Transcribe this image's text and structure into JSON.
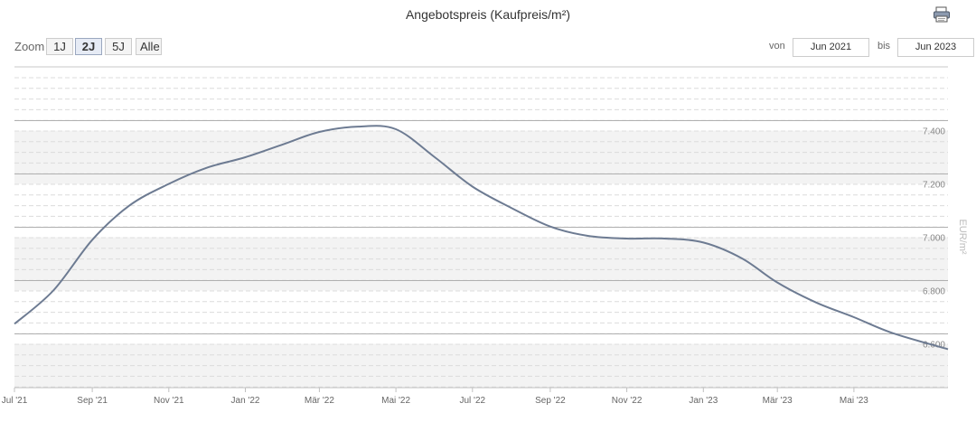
{
  "header": {
    "title": "Angebotspreis (Kaufpreis/m²)",
    "print_icon": "printer-icon"
  },
  "toolbar": {
    "zoom_label": "Zoom",
    "zoom_buttons": [
      "1J",
      "2J",
      "5J",
      "Alle"
    ],
    "active_zoom": "2J",
    "from_label": "von",
    "from_value": "Jun 2021",
    "to_label": "bis",
    "to_value": "Jun 2023"
  },
  "chart_data": {
    "type": "line",
    "ylabel": "EUR/m²",
    "ylim": [
      6500,
      7500
    ],
    "y_ticks": [
      6600,
      6800,
      7000,
      7200,
      7400
    ],
    "y_tick_labels": [
      "6.600",
      "6.800",
      "7.000",
      "7.200",
      "7.400"
    ],
    "x_range": [
      "2021-07-01",
      "2023-07-15"
    ],
    "x_ticks": [
      "2021-07-01",
      "2021-09-01",
      "2021-11-01",
      "2022-01-01",
      "2022-03-01",
      "2022-05-01",
      "2022-07-01",
      "2022-09-01",
      "2022-11-01",
      "2023-01-01",
      "2023-03-01",
      "2023-05-01"
    ],
    "x_tick_labels": [
      "Jul '21",
      "Sep '21",
      "Nov '21",
      "Jan '22",
      "Mär '22",
      "Mai '22",
      "Jul '22",
      "Sep '22",
      "Nov '22",
      "Jan '23",
      "Mär '23",
      "Mai '23"
    ],
    "grid": true,
    "series": [
      {
        "color": "#6d7b92",
        "points": [
          [
            "2021-07-01",
            6675
          ],
          [
            "2021-08-01",
            6800
          ],
          [
            "2021-09-01",
            6990
          ],
          [
            "2021-10-01",
            7120
          ],
          [
            "2021-11-01",
            7200
          ],
          [
            "2021-12-01",
            7260
          ],
          [
            "2022-01-01",
            7300
          ],
          [
            "2022-02-01",
            7350
          ],
          [
            "2022-03-01",
            7395
          ],
          [
            "2022-04-01",
            7415
          ],
          [
            "2022-05-01",
            7405
          ],
          [
            "2022-06-01",
            7300
          ],
          [
            "2022-07-01",
            7190
          ],
          [
            "2022-08-01",
            7110
          ],
          [
            "2022-09-01",
            7040
          ],
          [
            "2022-10-01",
            7005
          ],
          [
            "2022-11-01",
            6995
          ],
          [
            "2022-12-01",
            6995
          ],
          [
            "2023-01-01",
            6980
          ],
          [
            "2023-02-01",
            6920
          ],
          [
            "2023-03-01",
            6830
          ],
          [
            "2023-04-01",
            6755
          ],
          [
            "2023-05-01",
            6700
          ],
          [
            "2023-06-01",
            6640
          ],
          [
            "2023-07-15",
            6580
          ]
        ]
      }
    ]
  }
}
